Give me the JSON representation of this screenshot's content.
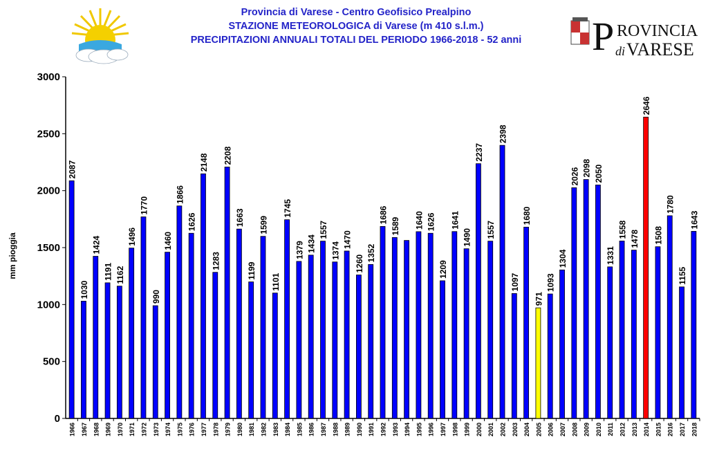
{
  "header": {
    "line1": "Provincia di Varese - Centro Geofisico Prealpino",
    "line2": "STAZIONE METEOROLOGICA di Varese (m 410 s.l.m.)",
    "line3": "PRECIPITAZIONI ANNUALI TOTALI  DEL PERIODO 1966-2018 - 52 anni"
  },
  "logo_right": {
    "big_p": "P",
    "rovincia": "ROVINCIA",
    "di": "di",
    "varese": "VARESE"
  },
  "colors": {
    "bar": "#0000ff",
    "highlight_min": "#ffff00",
    "highlight_max": "#ff0000",
    "title": "#2323c8"
  },
  "chart_data": {
    "type": "bar",
    "ylabel": "mm pioggia",
    "ylim": [
      0,
      3000
    ],
    "yticks": [
      0,
      500,
      1000,
      1500,
      2000,
      2500,
      3000
    ],
    "grid": false,
    "categories": [
      "1966",
      "1967",
      "1968",
      "1969",
      "1970",
      "1971",
      "1972",
      "1973",
      "1974",
      "1975",
      "1976",
      "1977",
      "1978",
      "1979",
      "1980",
      "1981",
      "1982",
      "1983",
      "1984",
      "1985",
      "1986",
      "1987",
      "1988",
      "1989",
      "1990",
      "1991",
      "1992",
      "1993",
      "1994",
      "1995",
      "1996",
      "1997",
      "1998",
      "1999",
      "2000",
      "2001",
      "2002",
      "2003",
      "2004",
      "2005",
      "2006",
      "2007",
      "2008",
      "2009",
      "2010",
      "2011",
      "2012",
      "2013",
      "2014",
      "2015",
      "2016",
      "2017",
      "2018"
    ],
    "values": [
      2087,
      1030,
      1424,
      1191,
      1162,
      1496,
      1770,
      990,
      1460,
      1866,
      1626,
      2148,
      1283,
      2208,
      1663,
      1199,
      1599,
      1101,
      1745,
      1379,
      1434,
      1557,
      1374,
      1470,
      1260,
      1352,
      1686,
      1589,
      1563,
      1640,
      1626,
      1209,
      1641,
      1490,
      2237,
      1557,
      2398,
      1097,
      1680,
      971,
      1093,
      1304,
      2026,
      2098,
      2050,
      1331,
      1558,
      1478,
      2646,
      1508,
      1780,
      1155,
      1643
    ],
    "labels": [
      "2087",
      "1030",
      "1424",
      "1191",
      "1162",
      "1496",
      "1770",
      "990",
      "1460",
      "1866",
      "1626",
      "2148",
      "1283",
      "2208",
      "1663",
      "1199",
      "1599",
      "1101",
      "1745",
      "1379",
      "1434",
      "1557",
      "1374",
      "1470",
      "1260",
      "1352",
      "1686",
      "1589",
      "",
      "1640",
      "1626",
      "1209",
      "1641",
      "1490",
      "2237",
      "1557",
      "2398",
      "1097",
      "1680",
      "971",
      "1093",
      "1304",
      "2026",
      "2098",
      "2050",
      "1331",
      "1558",
      "1478",
      "2646",
      "1508",
      "1780",
      "1155",
      "1643"
    ],
    "highlight": {
      "min_year": "2005",
      "max_year": "2014"
    }
  }
}
